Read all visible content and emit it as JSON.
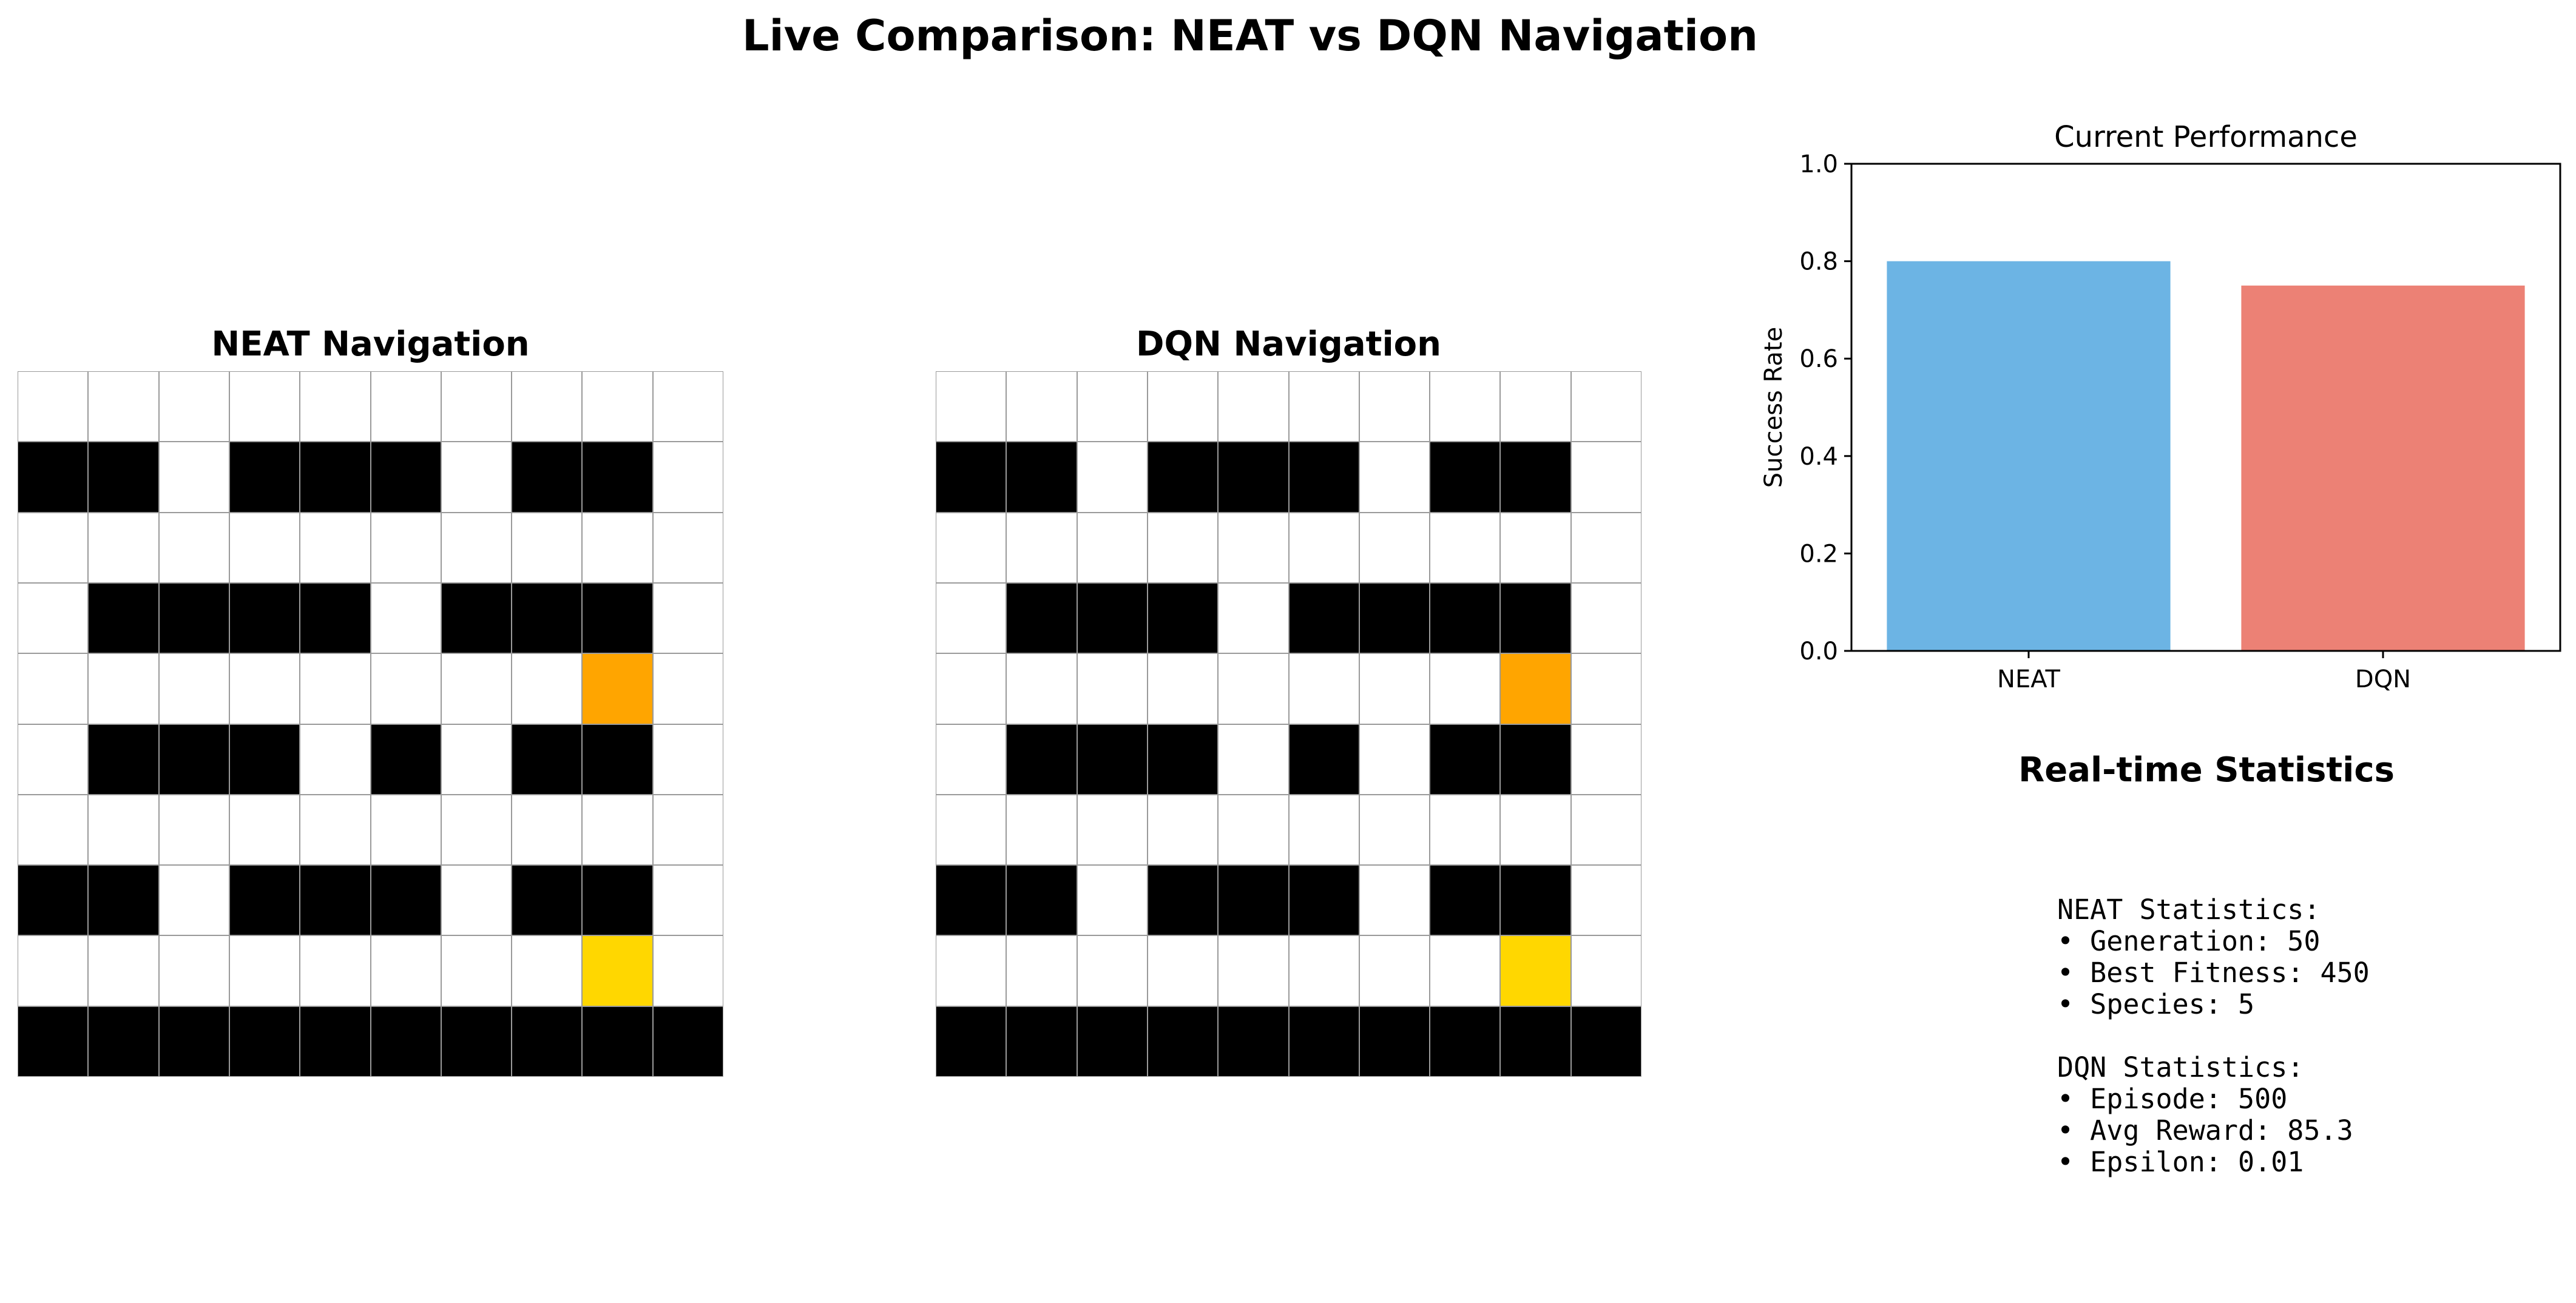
{
  "page": {
    "title": "Live Comparison: NEAT vs DQN Navigation"
  },
  "colors": {
    "wall": "#000000",
    "open": "#ffffff",
    "agent": "#ffa500",
    "goal": "#ffd700",
    "neat_bar": "#6cb4e4",
    "dqn_bar": "#ec8175"
  },
  "mazes": {
    "neat": {
      "title": "NEAT Navigation",
      "cells": [
        "..........",
        "##.###.##.",
        "..........",
        ".####.###.",
        "........A.",
        ".###.#.##.",
        "..........",
        "##.###.##.",
        "........G.",
        "##########"
      ]
    },
    "dqn": {
      "title": "DQN Navigation",
      "cells": [
        "..........",
        "##.###.##.",
        "..........",
        ".###.####.",
        "........A.",
        ".###.#.##.",
        "..........",
        "##.###.##.",
        "........G.",
        "##########"
      ]
    }
  },
  "chart_data": {
    "type": "bar",
    "title": "Current Performance",
    "categories": [
      "NEAT",
      "DQN"
    ],
    "values": [
      0.8,
      0.75
    ],
    "xlabel": "",
    "ylabel": "Success Rate",
    "ylim": [
      0,
      1.0
    ],
    "yticks": [
      "0.0",
      "0.2",
      "0.4",
      "0.6",
      "0.8",
      "1.0"
    ],
    "grid": false
  },
  "stats": {
    "title": "Real-time Statistics",
    "neat_header": "NEAT Statistics:",
    "neat_lines": [
      "• Generation: 50",
      "• Best Fitness: 450",
      "• Species: 5"
    ],
    "dqn_header": "DQN Statistics:",
    "dqn_lines": [
      "• Episode: 500",
      "• Avg Reward: 85.3",
      "• Epsilon: 0.01"
    ]
  }
}
